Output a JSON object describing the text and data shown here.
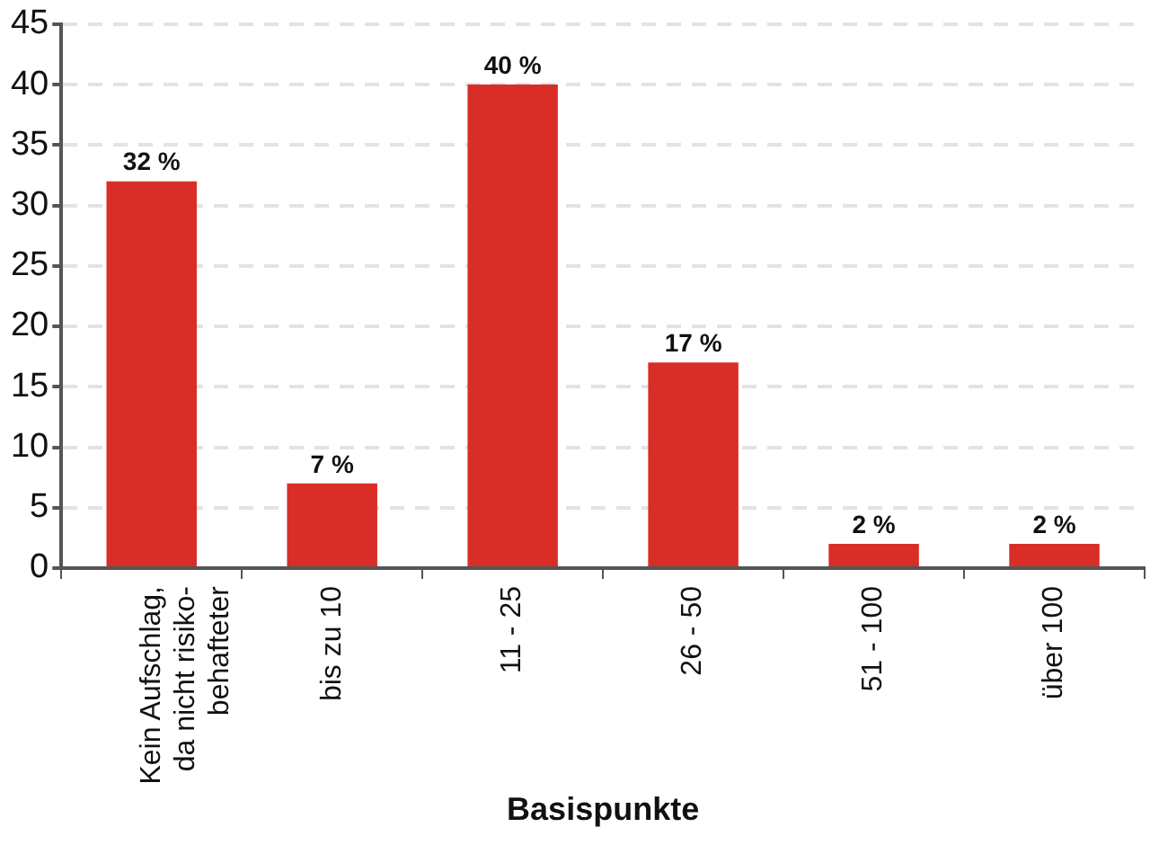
{
  "chart_data": {
    "type": "bar",
    "xlabel": "Basispunkte",
    "categories": [
      "Kein Aufschlag,\nda nicht risiko-\nbehafteter",
      "bis zu 10",
      "11 - 25",
      "26 - 50",
      "51 - 100",
      "über 100"
    ],
    "values": [
      32,
      7,
      40,
      17,
      2,
      2
    ],
    "value_labels": [
      "32 %",
      "7 %",
      "40 %",
      "17 %",
      "2 %",
      "2 %"
    ],
    "color": "#d92d27",
    "ylim": [
      0,
      45
    ],
    "yticks": [
      0,
      5,
      10,
      15,
      20,
      25,
      30,
      35,
      40,
      45
    ],
    "grid": "y",
    "legend": false
  }
}
